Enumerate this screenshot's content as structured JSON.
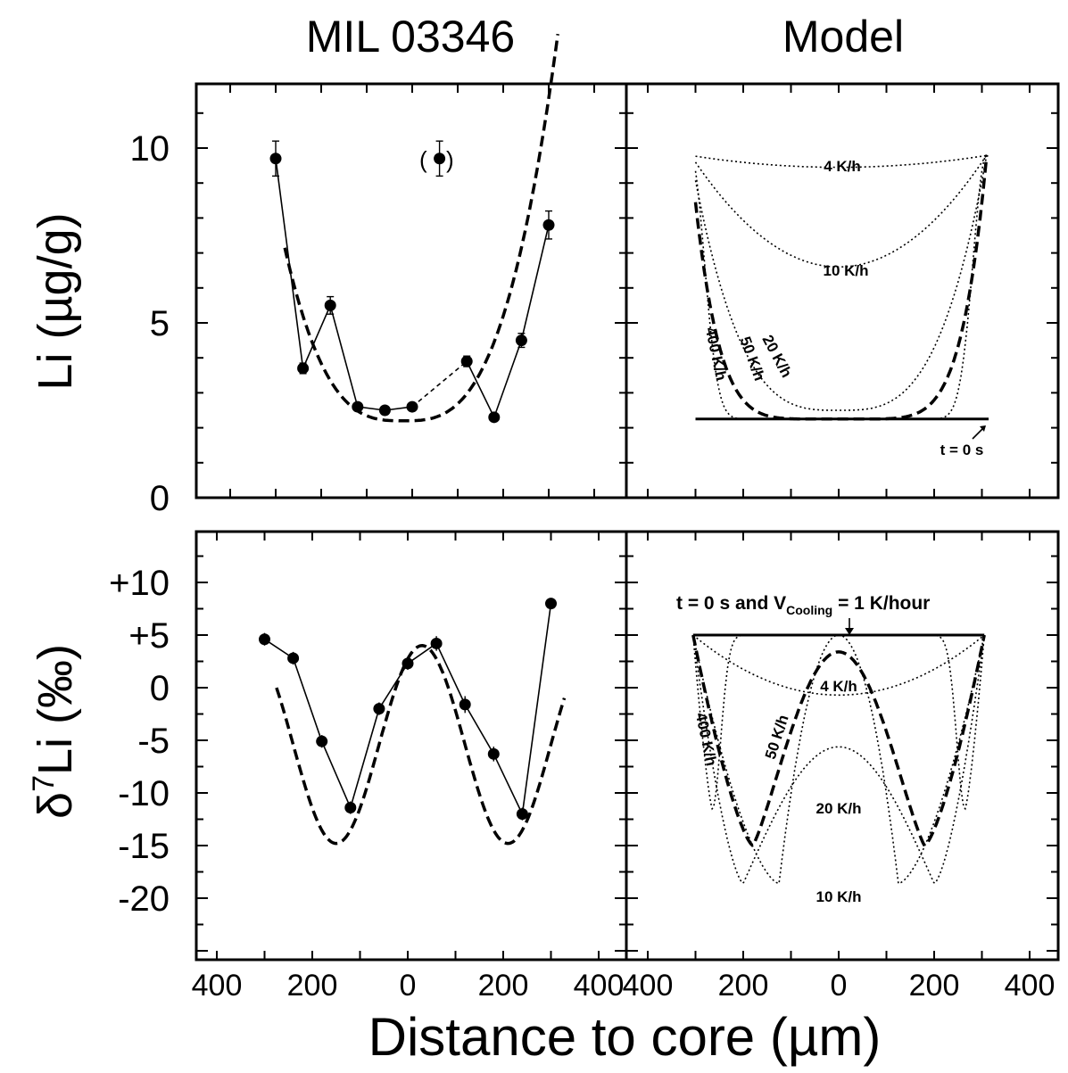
{
  "figure": {
    "col_titles": [
      "MIL 03346",
      "Model"
    ],
    "ylabel_top": "Li (µg/g)",
    "ylabel_bottom_prefix": "δ",
    "ylabel_bottom_sup": "7",
    "ylabel_bottom_suffix": "Li (‰)",
    "xlabel": "Distance to core (µm)"
  },
  "chart_data": [
    {
      "type": "scatter",
      "panel": "top-left",
      "title": "MIL 03346",
      "ylabel": "Li (µg/g)",
      "xlabel": "Distance to core (µm)",
      "xlim": [
        -400,
        400
      ],
      "ylim": [
        0,
        12
      ],
      "x_tick_labels": [
        "400",
        "200",
        "0",
        "200",
        "400"
      ],
      "y_tick_labels": [
        "0",
        "5",
        "10"
      ],
      "y_tick_values": [
        0,
        5,
        10
      ],
      "points": [
        {
          "x": -300,
          "y": 9.7,
          "err": 0.5
        },
        {
          "x": -240,
          "y": 3.7,
          "err": 0.15
        },
        {
          "x": -180,
          "y": 5.5,
          "err": 0.25
        },
        {
          "x": -120,
          "y": 2.6,
          "err": 0.1
        },
        {
          "x": -60,
          "y": 2.5,
          "err": 0.1
        },
        {
          "x": 0,
          "y": 2.6,
          "err": 0.1
        },
        {
          "x": 120,
          "y": 3.9,
          "err": 0.15
        },
        {
          "x": 180,
          "y": 2.3,
          "err": 0.1
        },
        {
          "x": 240,
          "y": 4.5,
          "err": 0.2
        },
        {
          "x": 300,
          "y": 7.8,
          "err": 0.4
        }
      ],
      "excluded_point": {
        "x": 60,
        "y": 9.7,
        "err": 0.5,
        "label": "(•)"
      },
      "connections": [
        {
          "from": 0,
          "to": 5,
          "style": "solid"
        },
        {
          "from": 5,
          "to": 6,
          "style": "dashed-thin"
        },
        {
          "from": 6,
          "to": 9,
          "style": "solid"
        }
      ],
      "model_curve": {
        "style": "dashed",
        "min": 2.2,
        "amplitude": 7.6,
        "exponent": 3,
        "xcenter": -20,
        "halfwidth": 300,
        "xrange": [
          -280,
          320
        ]
      }
    },
    {
      "type": "line",
      "panel": "top-right",
      "title": "Model",
      "xlim": [
        -400,
        400
      ],
      "ylim": [
        0,
        12
      ],
      "x_tick_labels": [
        "400",
        "200",
        "0",
        "200",
        "400"
      ],
      "base": 2.25,
      "edge": 9.8,
      "series": [
        {
          "name": "t = 0 s",
          "style": "solid",
          "center_value": 2.25
        },
        {
          "name": "4 K/h",
          "style": "dotted",
          "center_value": 9.5
        },
        {
          "name": "10 K/h",
          "style": "dotted",
          "center_value": 6.6
        },
        {
          "name": "20 K/h",
          "style": "dotted",
          "center_value": 2.5
        },
        {
          "name": "50 K/h",
          "style": "dashed",
          "center_value": 2.25
        },
        {
          "name": "400 K/h",
          "style": "dotted",
          "center_value": 2.25
        }
      ]
    },
    {
      "type": "scatter",
      "panel": "bottom-left",
      "ylabel": "δ7Li (‰)",
      "xlabel": "Distance to core (µm)",
      "xlim": [
        -400,
        400
      ],
      "ylim": [
        -25,
        15
      ],
      "x_tick_labels": [
        "400",
        "200",
        "0",
        "200",
        "400"
      ],
      "y_tick_labels": [
        "+10",
        "+5",
        "0",
        "-5",
        "-10",
        "-15",
        "-20"
      ],
      "y_tick_values": [
        10,
        5,
        0,
        -5,
        -10,
        -15,
        -20
      ],
      "points": [
        {
          "x": -300,
          "y": 4.6,
          "err": 0.6
        },
        {
          "x": -240,
          "y": 2.8,
          "err": 0.6
        },
        {
          "x": -180,
          "y": -5.1,
          "err": 0.6
        },
        {
          "x": -120,
          "y": -11.4,
          "err": 0.6
        },
        {
          "x": -60,
          "y": -2.0,
          "err": 0.6
        },
        {
          "x": 0,
          "y": 2.3,
          "err": 0.6
        },
        {
          "x": 60,
          "y": 4.2,
          "err": 0.7
        },
        {
          "x": 120,
          "y": -1.6,
          "err": 0.8
        },
        {
          "x": 180,
          "y": -6.3,
          "err": 0.7
        },
        {
          "x": 240,
          "y": -12.0,
          "err": 0.6
        },
        {
          "x": 300,
          "y": 8.0,
          "err": 0.5
        }
      ],
      "model_curve": {
        "style": "dashed",
        "peaks": [
          4.0
        ],
        "troughs": [
          -14.8
        ],
        "xcenter": 30,
        "xrange": [
          -275,
          330
        ]
      }
    },
    {
      "type": "line",
      "panel": "bottom-right",
      "xlim": [
        -400,
        400
      ],
      "ylim": [
        -25,
        15
      ],
      "x_tick_labels": [
        "400",
        "200",
        "0",
        "200",
        "400"
      ],
      "initial": 5,
      "series": [
        {
          "name": "t = 0 s and V_Cooling = 1 K/hour",
          "style": "solid",
          "min": 5
        },
        {
          "name": "4 K/h",
          "style": "dotted",
          "center_value": -0.7
        },
        {
          "name": "10 K/h",
          "style": "dotted",
          "min": -18.6
        },
        {
          "name": "20 K/h",
          "style": "dotted",
          "min": -18.6
        },
        {
          "name": "50 K/h",
          "style": "dashed",
          "min": -15.0,
          "center_value": 3.4
        },
        {
          "name": "400 K/h",
          "style": "dotted",
          "min": -11.5
        }
      ]
    }
  ],
  "annotations": {
    "tr_4kh": "4 K/h",
    "tr_10kh": "10 K/h",
    "tr_20kh": "20 K/h",
    "tr_50kh": "50 K/h",
    "tr_400kh": "400 K/h",
    "tr_t0": "t = 0 s",
    "br_header_a": "t = 0 s and V",
    "br_header_sub": "Cooling",
    "br_header_b": " = 1 K/hour",
    "br_4kh": "4 K/h",
    "br_10kh": "10 K/h",
    "br_20kh": "20 K/h",
    "br_50kh": "50 K/h",
    "br_400kh": "400 K/h",
    "excluded_left": "(",
    "excluded_right": ")"
  }
}
